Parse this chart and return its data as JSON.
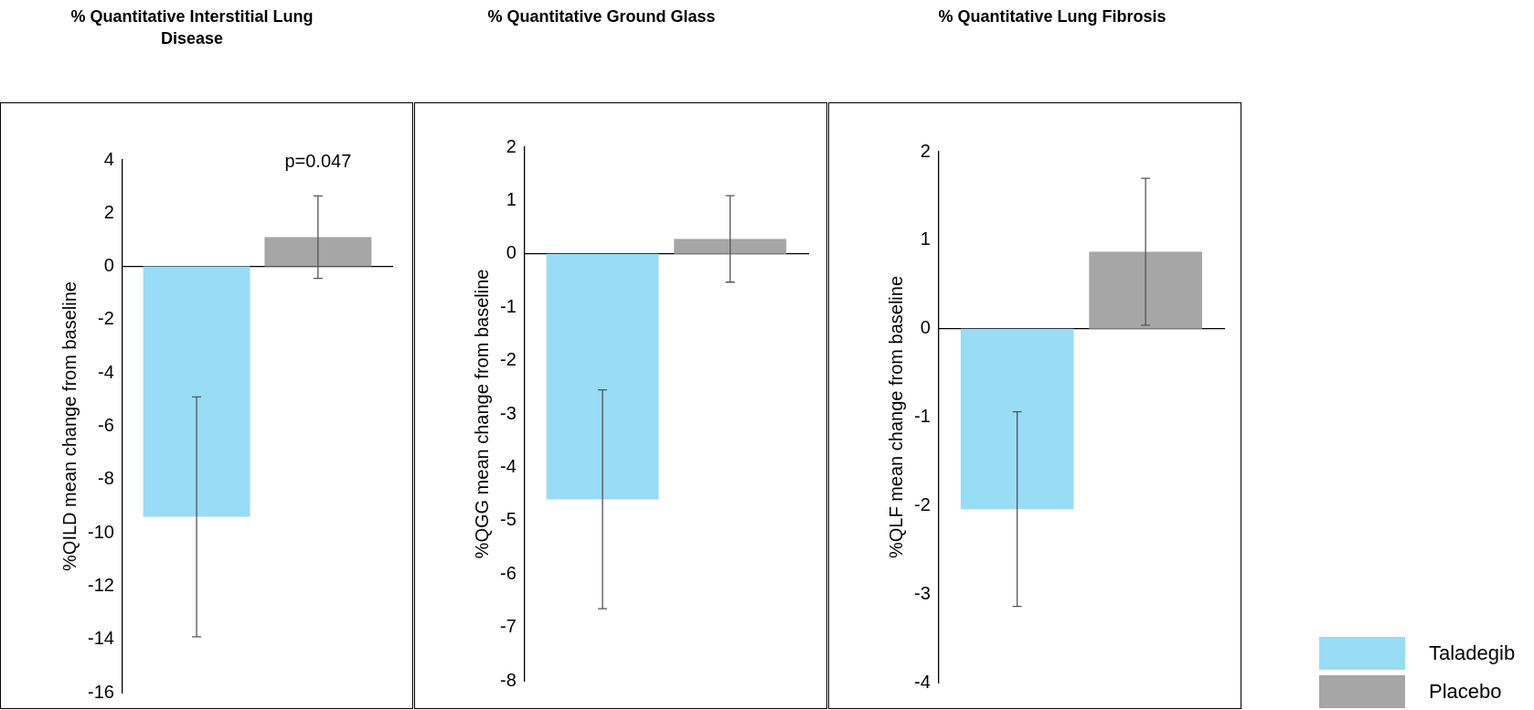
{
  "chart_data": [
    {
      "type": "bar",
      "title": "% Quantitative Interstitial Lung Disease",
      "ylabel": "%QILD mean change from baseline",
      "categories": [
        null
      ],
      "tick_labels": "y",
      "ylim": [
        -16,
        4
      ],
      "yticks": [
        -16,
        -14,
        -12,
        -10,
        -8,
        -6,
        -4,
        -2,
        0,
        2,
        4
      ],
      "annotations": [
        "p=0.047"
      ],
      "series": [
        {
          "color": "#99dcf6",
          "values": [
            -9.4
          ],
          "errors": [
            4.5
          ]
        },
        {
          "color": "#a6a6a6",
          "values": [
            1.1
          ],
          "errors": [
            1.55
          ]
        }
      ]
    },
    {
      "type": "bar",
      "title": "% Quantitative Ground Glass",
      "ylabel": "%QGG mean change from baseline",
      "categories": [
        null
      ],
      "tick_labels": "y",
      "ylim": [
        -8,
        2
      ],
      "yticks": [
        -8,
        -7,
        -6,
        -5,
        -4,
        -3,
        -2,
        -1,
        0,
        1,
        2
      ],
      "series": [
        {
          "color": "#99dcf6",
          "values": [
            -4.6
          ],
          "errors": [
            2.05
          ]
        },
        {
          "color": "#a6a6a6",
          "values": [
            0.28
          ],
          "errors": [
            0.81
          ]
        }
      ]
    },
    {
      "type": "bar",
      "title": "% Quantitative Lung Fibrosis",
      "ylabel": "%QLF mean change from baseline",
      "categories": [
        null
      ],
      "tick_labels": "y",
      "ylim": [
        -4,
        2
      ],
      "yticks": [
        -4,
        -3,
        -2,
        -1,
        0,
        1,
        2
      ],
      "legend": "bottom right",
      "series": [
        {
          "name": "Taladegib",
          "color": "#99dcf6",
          "values": [
            -2.04
          ],
          "errors": [
            1.1
          ]
        },
        {
          "name": "Placebo",
          "color": "#a6a6a6",
          "values": [
            0.87
          ],
          "errors": [
            0.83
          ]
        }
      ]
    }
  ]
}
